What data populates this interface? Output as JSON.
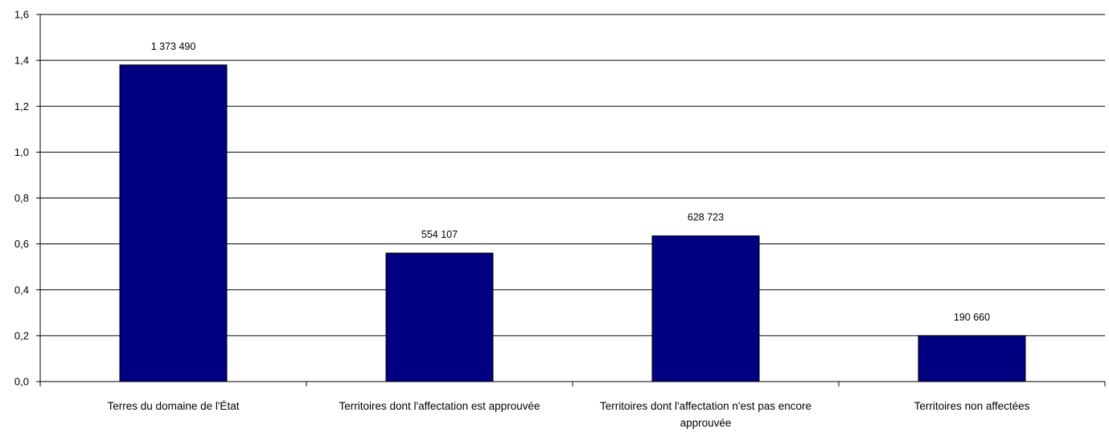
{
  "chart_data": {
    "type": "bar",
    "categories": [
      [
        "Terres du domaine de l'État"
      ],
      [
        "Territoires dont l'affectation est approuvée"
      ],
      [
        "Territoires dont l'affectation n'est pas encore",
        "approuvée"
      ],
      [
        "Territoires non affectées"
      ]
    ],
    "values": [
      1.38,
      0.56,
      0.635,
      0.2
    ],
    "data_labels": [
      "1 373 490",
      "554 107",
      "628 723",
      "190 660"
    ],
    "y_ticks": [
      "0,0",
      "0,2",
      "0,4",
      "0,6",
      "0,8",
      "1,0",
      "1,2",
      "1,4",
      "1,6"
    ],
    "ylim": [
      0,
      1.6
    ],
    "grid": true,
    "bar_color": "#000080",
    "title": "",
    "xlabel": "",
    "ylabel": ""
  }
}
